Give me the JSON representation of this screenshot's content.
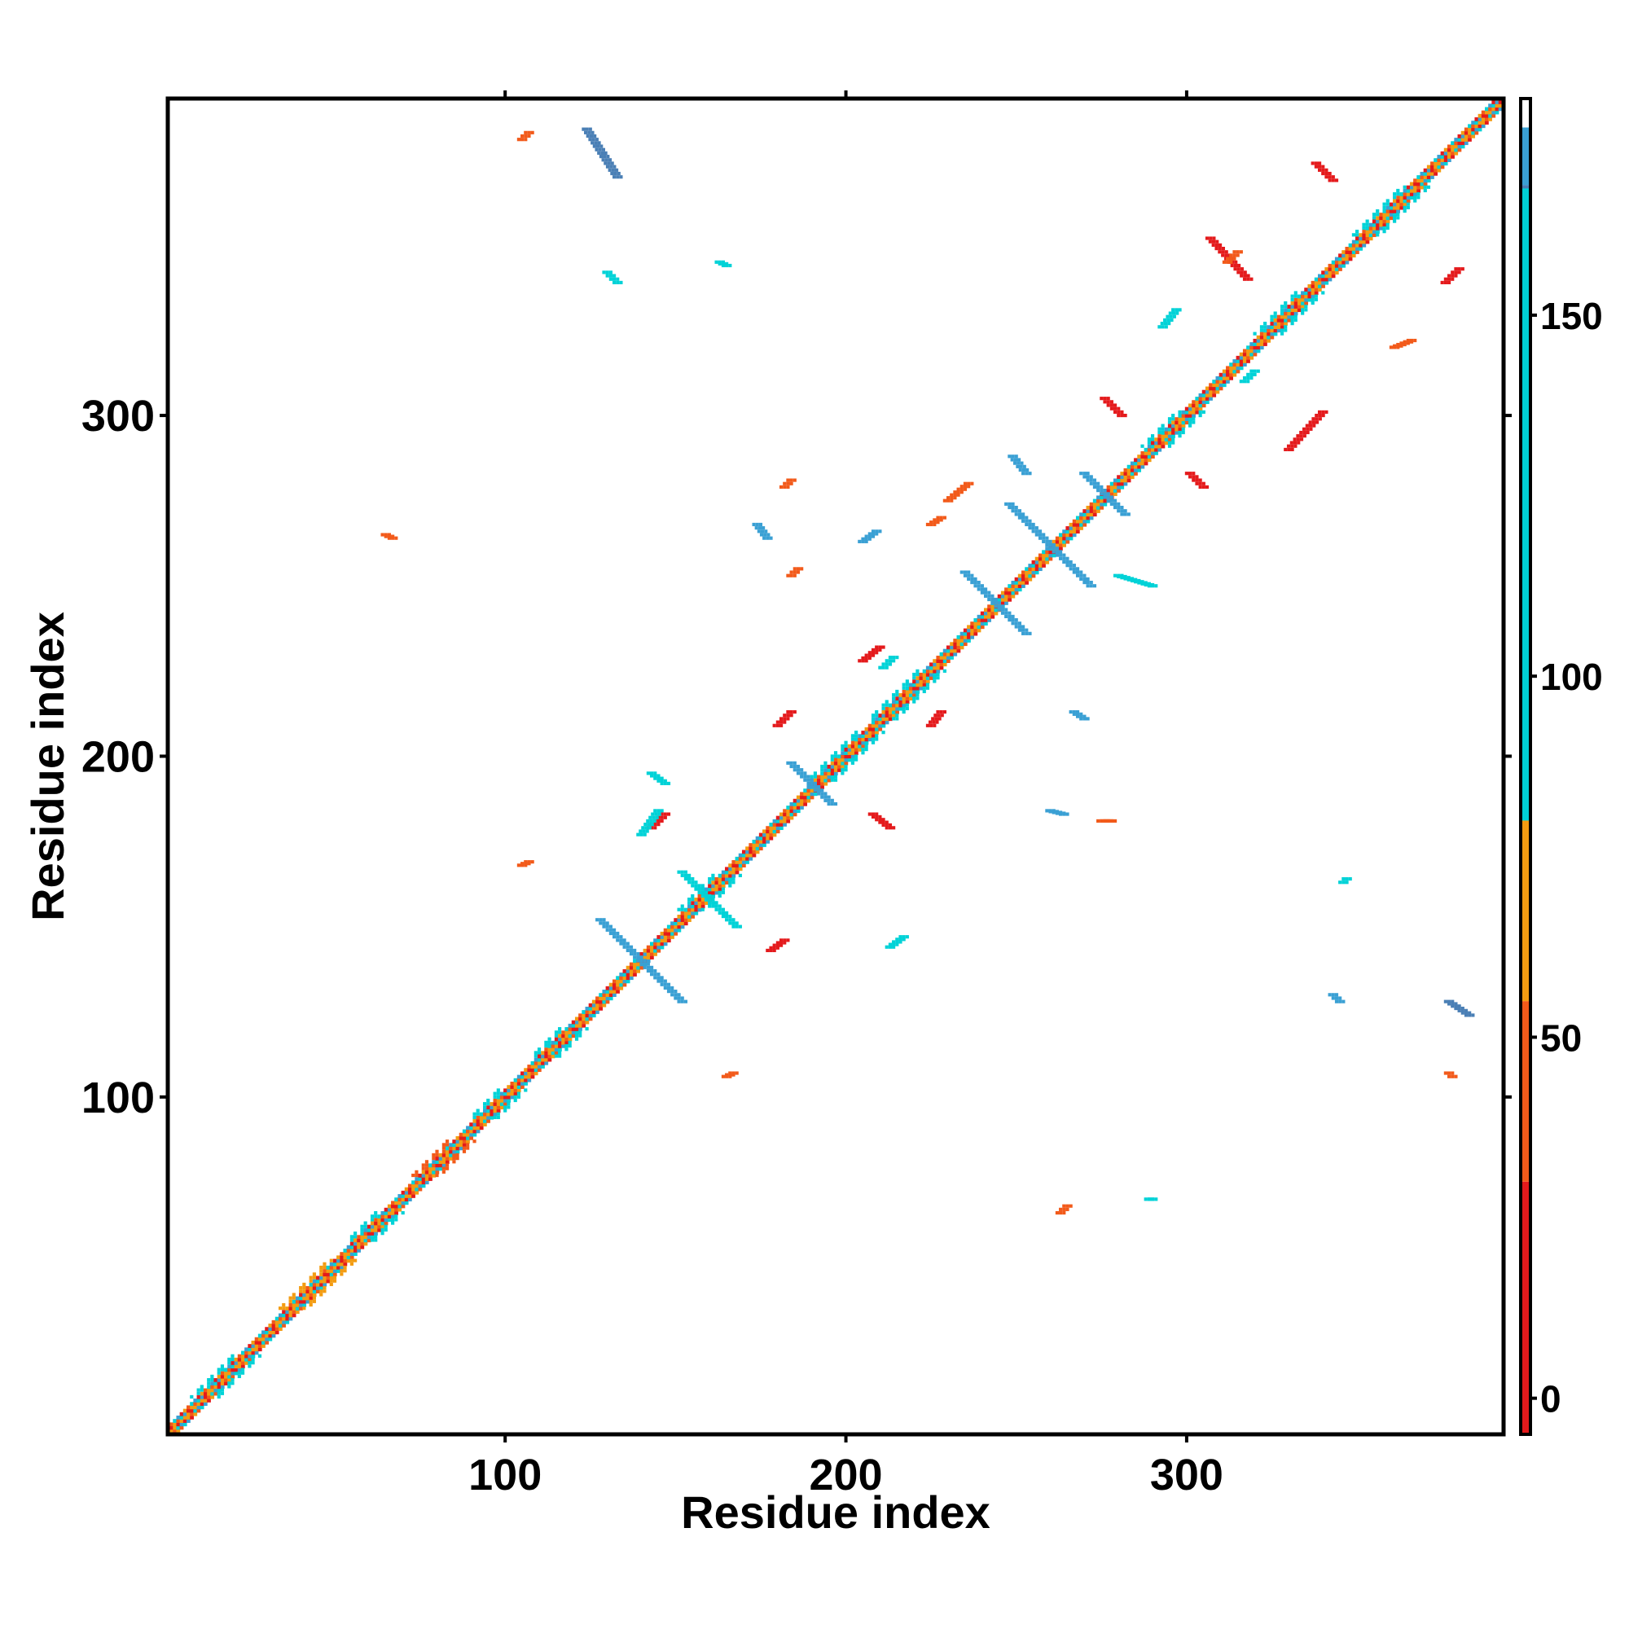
{
  "chart_data": {
    "type": "heatmap",
    "title": "",
    "xlabel": "Residue index",
    "ylabel": "Residue index",
    "xlim": [
      1,
      393
    ],
    "ylim": [
      1,
      393
    ],
    "xticks": [
      100,
      200,
      300
    ],
    "yticks": [
      100,
      200,
      300
    ],
    "grid": false,
    "symmetric": false,
    "colorbar": {
      "ticks": [
        0,
        50,
        100,
        150
      ],
      "range": [
        -5,
        180
      ],
      "bands": [
        {
          "from": -5,
          "to": 30,
          "color": "#e41a1c"
        },
        {
          "from": 30,
          "to": 55,
          "color": "#f25a1a"
        },
        {
          "from": 55,
          "to": 80,
          "color": "#f39c12"
        },
        {
          "from": 80,
          "to": 168,
          "color": "#00d2d7"
        },
        {
          "from": 168,
          "to": 176,
          "color": "#3aa0d4"
        },
        {
          "from": 176,
          "to": 180,
          "color": "#ffffff"
        }
      ],
      "divider_at": 168,
      "upper_color": "#4a7fb5"
    },
    "features": {
      "diagonal": {
        "from": 1,
        "to": 393,
        "palette": [
          "#f39c12",
          "#00d2d7",
          "#e41a1c",
          "#f25a1a",
          "#3aa0d4"
        ]
      },
      "helix_blocks": [
        {
          "center": 18,
          "length": 12,
          "color": "#00d2d7"
        },
        {
          "center": 45,
          "length": 14,
          "color": "#f39c12"
        },
        {
          "center": 62,
          "length": 8,
          "color": "#00d2d7"
        },
        {
          "center": 82,
          "length": 10,
          "color": "#f25a1a"
        },
        {
          "center": 98,
          "length": 8,
          "color": "#00d2d7"
        },
        {
          "center": 116,
          "length": 8,
          "color": "#00d2d7"
        },
        {
          "center": 160,
          "length": 10,
          "color": "#00d2d7"
        },
        {
          "center": 200,
          "length": 14,
          "color": "#00d2d7"
        },
        {
          "center": 218,
          "length": 14,
          "color": "#00d2d7"
        },
        {
          "center": 296,
          "length": 10,
          "color": "#00d2d7"
        },
        {
          "center": 330,
          "length": 12,
          "color": "#00d2d7"
        },
        {
          "center": 360,
          "length": 14,
          "color": "#00d2d7"
        }
      ],
      "sheet_crosses": [
        {
          "x": 140,
          "y": 140,
          "half": 12,
          "color": "#3aa0d4"
        },
        {
          "x": 160,
          "y": 158,
          "half": 8,
          "color": "#00d2d7"
        },
        {
          "x": 244,
          "y": 245,
          "half": 9,
          "color": "#3aa0d4"
        },
        {
          "x": 260,
          "y": 262,
          "half": 12,
          "color": "#3aa0d4"
        },
        {
          "x": 276,
          "y": 277,
          "half": 6,
          "color": "#3aa0d4"
        },
        {
          "x": 190,
          "y": 192,
          "half": 6,
          "color": "#3aa0d4"
        }
      ],
      "offdiag_streaks": [
        {
          "x1": 133,
          "y1": 370,
          "x2": 124,
          "y2": 384,
          "color": "#4a7fb5"
        },
        {
          "x1": 105,
          "y1": 381,
          "x2": 107,
          "y2": 383,
          "color": "#f25a1a"
        },
        {
          "x1": 130,
          "y1": 342,
          "x2": 133,
          "y2": 339,
          "color": "#00d2d7"
        },
        {
          "x1": 163,
          "y1": 345,
          "x2": 165,
          "y2": 344,
          "color": "#00d2d7"
        },
        {
          "x1": 343,
          "y1": 369,
          "x2": 338,
          "y2": 374,
          "color": "#e41a1c"
        },
        {
          "x1": 318,
          "y1": 340,
          "x2": 307,
          "y2": 352,
          "color": "#e41a1c"
        },
        {
          "x1": 376,
          "y1": 339,
          "x2": 380,
          "y2": 343,
          "color": "#e41a1c"
        },
        {
          "x1": 281,
          "y1": 300,
          "x2": 276,
          "y2": 305,
          "color": "#e41a1c"
        },
        {
          "x1": 330,
          "y1": 290,
          "x2": 340,
          "y2": 301,
          "color": "#e41a1c"
        },
        {
          "x1": 305,
          "y1": 279,
          "x2": 301,
          "y2": 283,
          "color": "#e41a1c"
        },
        {
          "x1": 253,
          "y1": 283,
          "x2": 249,
          "y2": 288,
          "color": "#3aa0d4"
        },
        {
          "x1": 205,
          "y1": 263,
          "x2": 209,
          "y2": 266,
          "color": "#3aa0d4"
        },
        {
          "x1": 174,
          "y1": 268,
          "x2": 177,
          "y2": 264,
          "color": "#3aa0d4"
        },
        {
          "x1": 280,
          "y1": 253,
          "x2": 290,
          "y2": 250,
          "color": "#00d2d7"
        },
        {
          "x1": 205,
          "y1": 228,
          "x2": 210,
          "y2": 232,
          "color": "#e41a1c"
        },
        {
          "x1": 180,
          "y1": 209,
          "x2": 184,
          "y2": 213,
          "color": "#e41a1c"
        },
        {
          "x1": 225,
          "y1": 209,
          "x2": 228,
          "y2": 213,
          "color": "#e41a1c"
        },
        {
          "x1": 143,
          "y1": 179,
          "x2": 147,
          "y2": 183,
          "color": "#e41a1c"
        },
        {
          "x1": 208,
          "y1": 183,
          "x2": 213,
          "y2": 179,
          "color": "#e41a1c"
        },
        {
          "x1": 178,
          "y1": 143,
          "x2": 182,
          "y2": 146,
          "color": "#e41a1c"
        },
        {
          "x1": 275,
          "y1": 181,
          "x2": 278,
          "y2": 181,
          "color": "#f25a1a"
        },
        {
          "x1": 260,
          "y1": 184,
          "x2": 264,
          "y2": 183,
          "color": "#3aa0d4"
        },
        {
          "x1": 267,
          "y1": 213,
          "x2": 270,
          "y2": 211,
          "color": "#3aa0d4"
        },
        {
          "x1": 65,
          "y1": 265,
          "x2": 67,
          "y2": 264,
          "color": "#f25a1a"
        },
        {
          "x1": 105,
          "y1": 168,
          "x2": 107,
          "y2": 169,
          "color": "#f25a1a"
        },
        {
          "x1": 165,
          "y1": 106,
          "x2": 167,
          "y2": 107,
          "color": "#f25a1a"
        },
        {
          "x1": 377,
          "y1": 128,
          "x2": 383,
          "y2": 124,
          "color": "#4a7fb5"
        },
        {
          "x1": 377,
          "y1": 107,
          "x2": 378,
          "y2": 106,
          "color": "#f25a1a"
        },
        {
          "x1": 343,
          "y1": 130,
          "x2": 345,
          "y2": 128,
          "color": "#3aa0d4"
        },
        {
          "x1": 346,
          "y1": 163,
          "x2": 347,
          "y2": 164,
          "color": "#00d2d7"
        },
        {
          "x1": 263,
          "y1": 66,
          "x2": 265,
          "y2": 68,
          "color": "#f25a1a"
        },
        {
          "x1": 289,
          "y1": 70,
          "x2": 290,
          "y2": 70,
          "color": "#00d2d7"
        },
        {
          "x1": 140,
          "y1": 177,
          "x2": 145,
          "y2": 184,
          "color": "#00d2d7"
        },
        {
          "x1": 143,
          "y1": 195,
          "x2": 147,
          "y2": 192,
          "color": "#00d2d7"
        },
        {
          "x1": 211,
          "y1": 226,
          "x2": 214,
          "y2": 229,
          "color": "#00d2d7"
        },
        {
          "x1": 317,
          "y1": 310,
          "x2": 320,
          "y2": 313,
          "color": "#00d2d7"
        },
        {
          "x1": 312,
          "y1": 345,
          "x2": 315,
          "y2": 348,
          "color": "#f25a1a"
        },
        {
          "x1": 293,
          "y1": 326,
          "x2": 297,
          "y2": 331,
          "color": "#00d2d7"
        },
        {
          "x1": 230,
          "y1": 275,
          "x2": 236,
          "y2": 280,
          "color": "#f25a1a"
        },
        {
          "x1": 225,
          "y1": 268,
          "x2": 228,
          "y2": 270,
          "color": "#f25a1a"
        },
        {
          "x1": 361,
          "y1": 320,
          "x2": 366,
          "y2": 322,
          "color": "#f25a1a"
        },
        {
          "x1": 213,
          "y1": 144,
          "x2": 217,
          "y2": 147,
          "color": "#00d2d7"
        },
        {
          "x1": 182,
          "y1": 279,
          "x2": 184,
          "y2": 281,
          "color": "#f25a1a"
        },
        {
          "x1": 184,
          "y1": 253,
          "x2": 186,
          "y2": 255,
          "color": "#f25a1a"
        }
      ]
    }
  }
}
